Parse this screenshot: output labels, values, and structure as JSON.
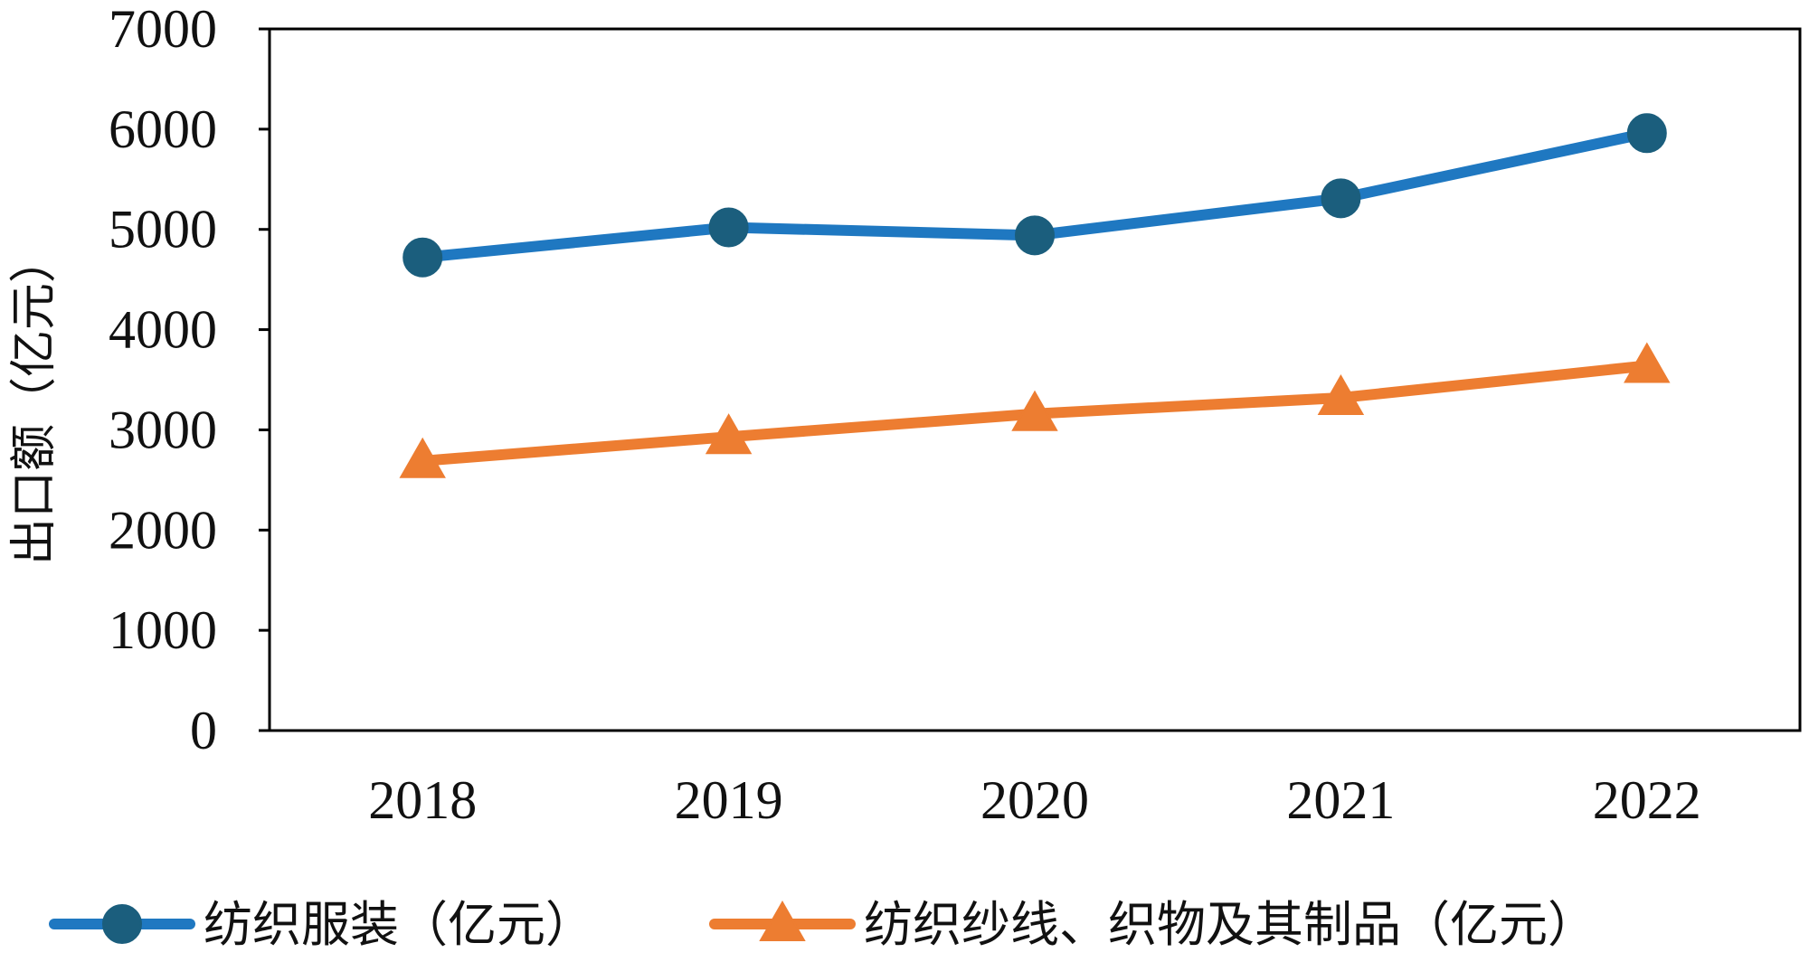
{
  "chart_data": {
    "type": "line",
    "categories": [
      "2018",
      "2019",
      "2020",
      "2021",
      "2022"
    ],
    "series": [
      {
        "name": "纺织服装（亿元）",
        "values": [
          4720,
          5020,
          4940,
          5310,
          5960
        ],
        "color": "#1f78c1",
        "marker": "circle"
      },
      {
        "name": "纺织纱线、织物及其制品（亿元）",
        "values": [
          2690,
          2930,
          3160,
          3320,
          3640
        ],
        "color": "#ed7d31",
        "marker": "triangle"
      }
    ],
    "ylabel": "出口额（亿元）",
    "xlabel": "",
    "title": "",
    "ylim": [
      0,
      7000
    ],
    "yticks": [
      0,
      1000,
      2000,
      3000,
      4000,
      5000,
      6000,
      7000
    ],
    "grid": false,
    "legend_position": "bottom"
  }
}
